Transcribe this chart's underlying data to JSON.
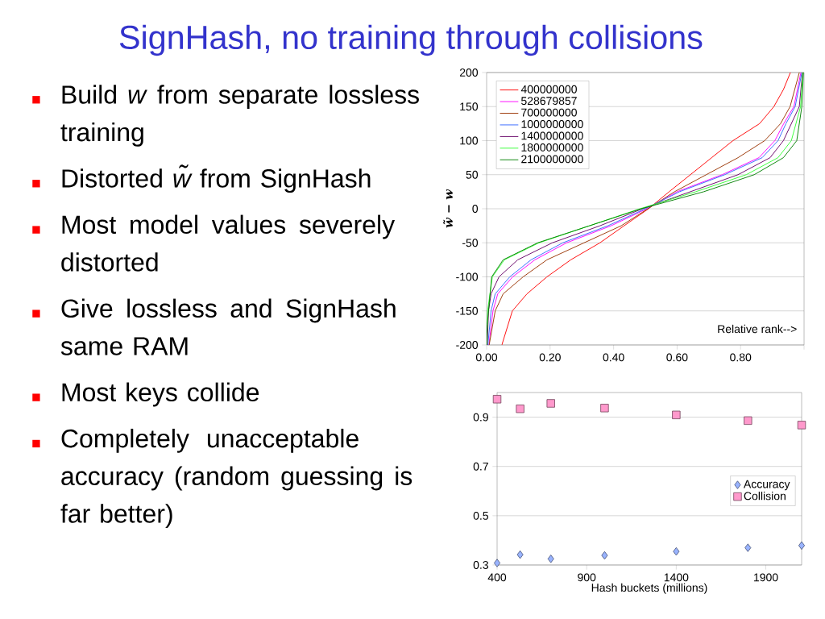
{
  "chart_data": [
    {
      "type": "other",
      "title": "SignHash, no training through collisions",
      "annotations": [
        "Build *w* from separate lossless training",
        "Distorted *w̃* from SignHash",
        "Most model values severely distorted",
        "Give lossless and SignHash same RAM",
        "Most keys collide",
        "Completely unacceptable accuracy (random guessing is far better)"
      ]
    },
    {
      "type": "line",
      "ylabel": "w̃ − w",
      "annotations": [
        "Relative rank-->"
      ],
      "xlim": [
        0,
        1
      ],
      "ylim": [
        -200,
        200
      ],
      "xticks": [
        {
          "value": 0,
          "label": "0.00"
        },
        {
          "value": 0.2,
          "label": "0.20"
        },
        {
          "value": 0.4,
          "label": "0.40"
        },
        {
          "value": 0.6,
          "label": "0.60"
        },
        {
          "value": 0.8,
          "label": "0.80"
        },
        {
          "value": 1,
          "label": null
        }
      ],
      "yticks": [
        -200,
        -150,
        -100,
        -50,
        0,
        50,
        100,
        150,
        200
      ],
      "grid": "y",
      "legend": "top left",
      "series": [
        {
          "name": "400000000",
          "color": "#ff0000",
          "x": [
            0.048,
            0.081,
            0.127,
            0.19,
            0.265,
            0.357,
            0.433,
            0.51,
            0.575,
            0.642,
            0.709,
            0.776,
            0.86,
            0.905,
            0.935,
            0.957
          ],
          "values": [
            -200,
            -150,
            -125,
            -100,
            -75,
            -50,
            -25,
            0,
            25,
            50,
            75,
            100,
            125,
            150,
            175,
            200
          ]
        },
        {
          "name": "528679857",
          "color": "#ff00ff",
          "x": [
            0.007,
            0.02,
            0.035,
            0.082,
            0.152,
            0.252,
            0.392,
            0.505,
            0.6,
            0.742,
            0.858,
            0.908,
            0.936,
            0.968,
            0.99
          ],
          "values": [
            -200,
            -150,
            -125,
            -100,
            -75,
            -50,
            -25,
            0,
            25,
            50,
            75,
            100,
            125,
            150,
            200
          ]
        },
        {
          "name": "700000000",
          "color": "#993300",
          "x": [
            0.008,
            0.027,
            0.052,
            0.115,
            0.19,
            0.307,
            0.424,
            0.508,
            0.592,
            0.692,
            0.792,
            0.876,
            0.926,
            0.956,
            0.985
          ],
          "values": [
            -200,
            -150,
            -125,
            -100,
            -75,
            -50,
            -25,
            0,
            25,
            50,
            75,
            100,
            125,
            150,
            200
          ]
        },
        {
          "name": "1000000000",
          "color": "#3366ff",
          "x": [
            0.004,
            0.014,
            0.027,
            0.073,
            0.14,
            0.24,
            0.382,
            0.5,
            0.608,
            0.75,
            0.868,
            0.918,
            0.943,
            0.972,
            0.993
          ],
          "values": [
            -200,
            -150,
            -125,
            -100,
            -75,
            -50,
            -25,
            0,
            25,
            50,
            75,
            100,
            125,
            150,
            200
          ]
        },
        {
          "name": "1400000000",
          "color": "#660066",
          "x": [
            0.002,
            0.006,
            0.014,
            0.039,
            0.098,
            0.207,
            0.357,
            0.491,
            0.642,
            0.792,
            0.893,
            0.935,
            0.985,
            0.995
          ],
          "values": [
            -200,
            -150,
            -125,
            -100,
            -75,
            -50,
            -25,
            0,
            25,
            50,
            75,
            100,
            150,
            200
          ]
        },
        {
          "name": "1800000000",
          "color": "#33ff33",
          "x": [
            0.0,
            0.003,
            0.018,
            0.056,
            0.165,
            0.324,
            0.483,
            0.659,
            0.818,
            0.918,
            0.96,
            0.989,
            0.996
          ],
          "values": [
            -200,
            -150,
            -100,
            -75,
            -50,
            -25,
            0,
            25,
            50,
            75,
            100,
            150,
            200
          ]
        },
        {
          "name": "2100000000",
          "color": "#008000",
          "x": [
            0.0,
            0.002,
            0.016,
            0.052,
            0.161,
            0.324,
            0.487,
            0.684,
            0.843,
            0.935,
            0.977,
            0.993,
            0.998
          ],
          "values": [
            -200,
            -170,
            -100,
            -75,
            -50,
            -25,
            0,
            25,
            50,
            75,
            100,
            150,
            200
          ]
        }
      ]
    },
    {
      "type": "scatter",
      "xlabel": "Hash buckets (millions)",
      "x": [
        400,
        528.679857,
        700,
        1000,
        1400,
        1800,
        2100
      ],
      "xlim": [
        400,
        2100
      ],
      "ylim": [
        0.3,
        1.0
      ],
      "xticks": [
        400,
        900,
        1400,
        1900
      ],
      "yticks": [
        0.3,
        0.5,
        0.7,
        0.9
      ],
      "grid": "y",
      "legend": "right",
      "series": [
        {
          "name": "Accuracy",
          "color": "#99b3ff",
          "marker": "diamond",
          "values": [
            0.308,
            0.342,
            0.325,
            0.339,
            0.355,
            0.37,
            0.379
          ]
        },
        {
          "name": "Collision",
          "color": "#ff99cc",
          "marker": "square",
          "values": [
            0.973,
            0.934,
            0.956,
            0.937,
            0.909,
            0.886,
            0.868
          ]
        }
      ]
    }
  ]
}
